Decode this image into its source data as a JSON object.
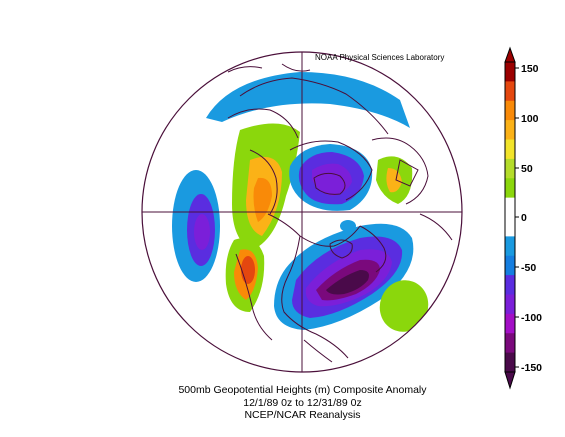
{
  "credit": "NOAA Physical Sciences Laboratory",
  "caption": {
    "line1": "500mb Geopotential Heights (m)   Composite Anomaly",
    "line2": "12/1/89 0z  to 12/31/89 0z",
    "line3": "NCEP/NCAR Reanalysis"
  },
  "colorbar": {
    "labels": [
      "150",
      "100",
      "50",
      "0",
      "-50",
      "-100",
      "-150"
    ],
    "colors": [
      "#9b0000",
      "#e4470f",
      "#f98a08",
      "#fbb217",
      "#f2e42a",
      "#b4dc2a",
      "#8bd70c",
      "#ffffff",
      "#ffffff",
      "#1a9ae0",
      "#157ee0",
      "#5a2de0",
      "#7b1fd9",
      "#a30fc6",
      "#7a097c",
      "#4a0a4a"
    ]
  }
}
